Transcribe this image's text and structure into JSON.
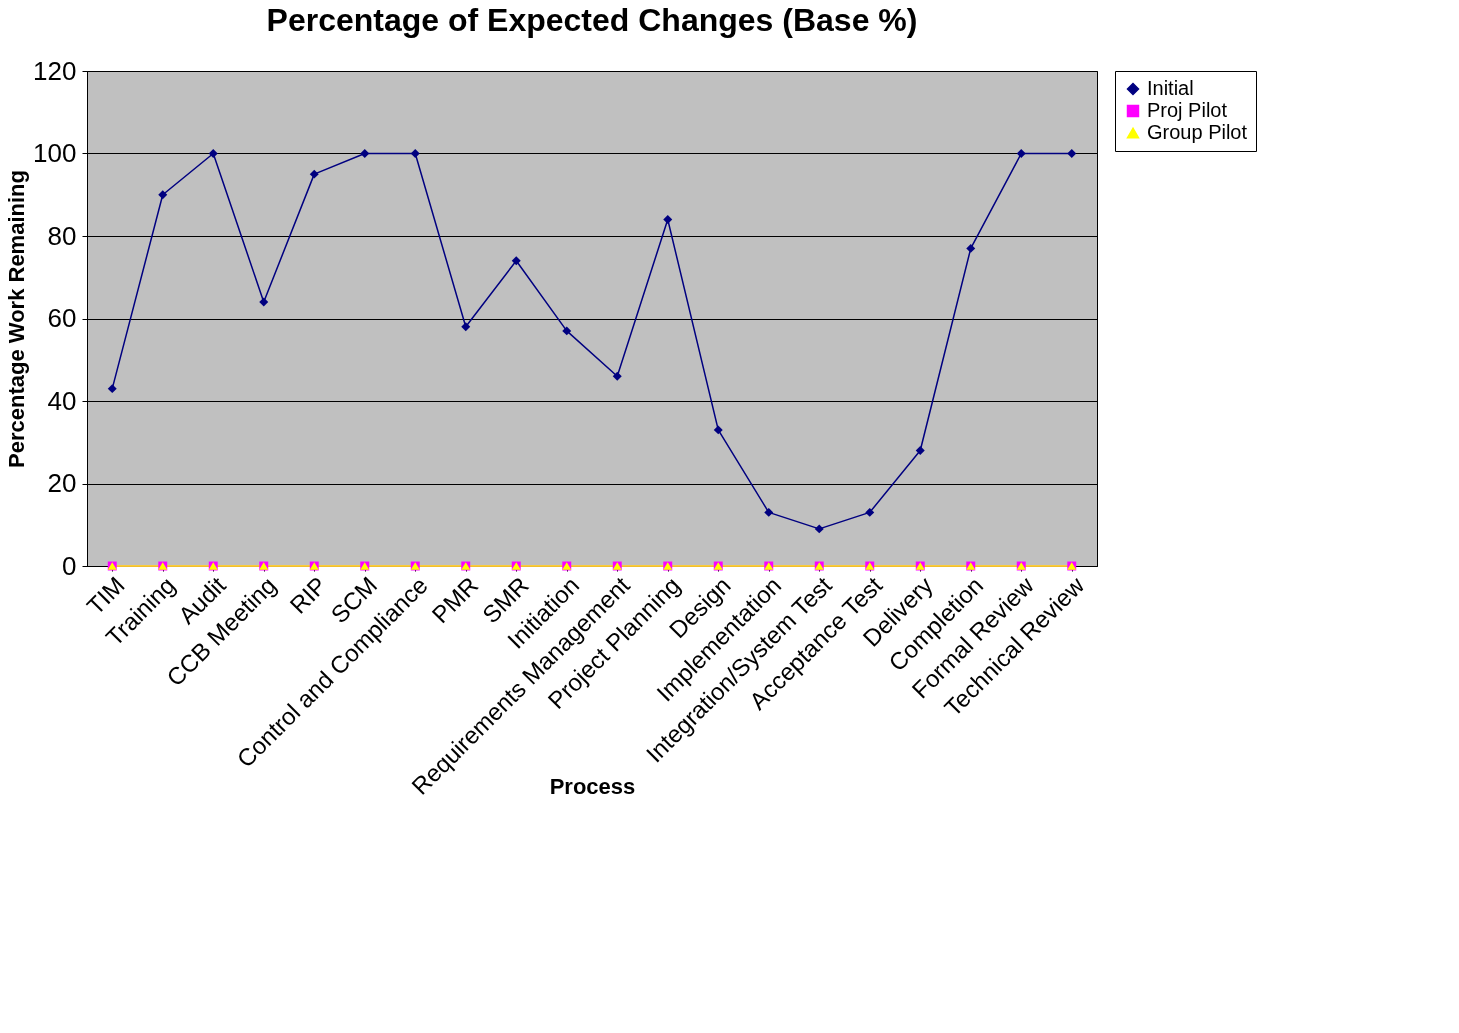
{
  "chart_data": {
    "type": "line",
    "title": "Percentage of Expected Changes (Base %)",
    "xlabel": "Process",
    "ylabel": "Percentage Work Remaining",
    "categories": [
      "TIM",
      "Training",
      "Audit",
      "CCB Meeting",
      "RIP",
      "SCM",
      "Control and Compliance",
      "PMR",
      "SMR",
      "Initiation",
      "Requirements Management",
      "Project Planning",
      "Design",
      "Implementation",
      "Integration/System Test",
      "Acceptance Test",
      "Delivery",
      "Completion",
      "Formal Review",
      "Technical Review"
    ],
    "series": [
      {
        "name": "Initial",
        "color": "#000080",
        "marker": "diamond",
        "values": [
          43,
          90,
          100,
          64,
          95,
          100,
          100,
          58,
          74,
          57,
          46,
          84,
          33,
          13,
          9,
          13,
          28,
          77,
          100,
          100
        ]
      },
      {
        "name": "Proj Pilot",
        "color": "#ff00ff",
        "marker": "square",
        "values": [
          0,
          0,
          0,
          0,
          0,
          0,
          0,
          0,
          0,
          0,
          0,
          0,
          0,
          0,
          0,
          0,
          0,
          0,
          0,
          0
        ]
      },
      {
        "name": "Group Pilot",
        "color": "#ffff00",
        "marker": "triangle",
        "values": [
          0,
          0,
          0,
          0,
          0,
          0,
          0,
          0,
          0,
          0,
          0,
          0,
          0,
          0,
          0,
          0,
          0,
          0,
          0,
          0
        ]
      }
    ],
    "ylim": [
      0,
      120
    ],
    "yticks": [
      0,
      20,
      40,
      60,
      80,
      100,
      120
    ],
    "grid": "y",
    "legend": "top right",
    "line_style": "solid"
  }
}
